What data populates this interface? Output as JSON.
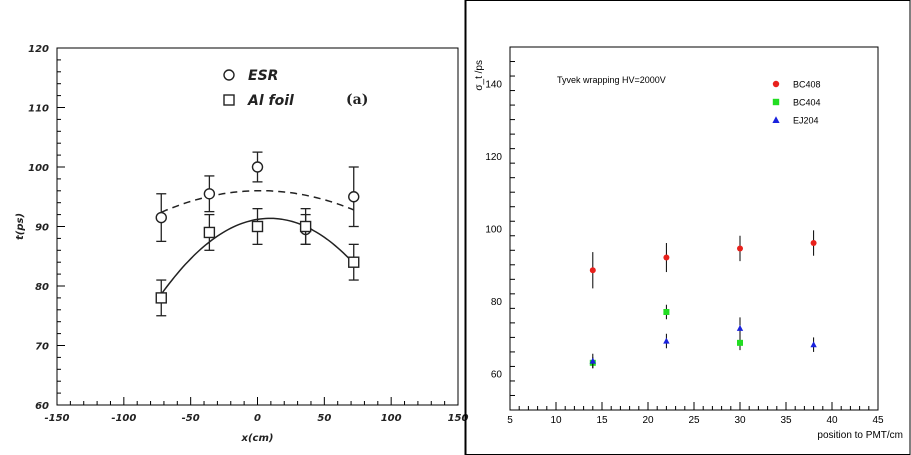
{
  "chart_data": [
    {
      "type": "scatter",
      "title": "",
      "annotation": "(a)",
      "xlabel": "x(cm)",
      "ylabel": "t(ps)",
      "xlim": [
        -150,
        150
      ],
      "ylim": [
        60,
        120
      ],
      "xticks": [
        "-150",
        "-100",
        "-50",
        "0",
        "50",
        "100",
        "150"
      ],
      "yticks": [
        "60",
        "70",
        "80",
        "90",
        "100",
        "110",
        "120"
      ],
      "legend_position": "top-center",
      "series": [
        {
          "name": "ESR",
          "marker": "circle",
          "x": [
            -72,
            -36,
            0,
            36,
            72
          ],
          "y": [
            91.5,
            95.5,
            100,
            89.5,
            95
          ],
          "err": [
            4,
            3,
            2.5,
            2.5,
            5
          ],
          "fit": "dashed"
        },
        {
          "name": "Al foil",
          "marker": "square",
          "x": [
            -72,
            -36,
            0,
            36,
            72
          ],
          "y": [
            78,
            89,
            90,
            90,
            84
          ],
          "err": [
            3,
            3,
            3,
            3,
            3
          ],
          "fit": "solid"
        }
      ]
    },
    {
      "type": "scatter",
      "title": "",
      "annotation": "Tyvek wrapping  HV=2000V",
      "xlabel": "position to PMT/cm",
      "ylabel": "σ_t /ps",
      "xlim": [
        5,
        45
      ],
      "ylim": [
        50,
        150
      ],
      "xticks": [
        "5",
        "10",
        "15",
        "20",
        "25",
        "30",
        "35",
        "40",
        "45"
      ],
      "yticks": [
        "60",
        "80",
        "100",
        "120",
        "140"
      ],
      "legend_position": "top-right",
      "series": [
        {
          "name": "BC408",
          "color": "#e8211c",
          "marker": "circle",
          "x": [
            14,
            22,
            30,
            38
          ],
          "y": [
            88.5,
            92,
            94.5,
            96
          ],
          "err": [
            5,
            4,
            3.5,
            3.5
          ]
        },
        {
          "name": "BC404",
          "color": "#22dd22",
          "marker": "square",
          "x": [
            14,
            22,
            30
          ],
          "y": [
            63,
            77,
            68.5
          ],
          "err": [
            1.5,
            2,
            2
          ]
        },
        {
          "name": "EJ204",
          "color": "#1a22dd",
          "marker": "triangle",
          "x": [
            14,
            22,
            30,
            38
          ],
          "y": [
            63.5,
            69,
            72.5,
            68
          ],
          "err": [
            2,
            2,
            3,
            2
          ]
        }
      ]
    }
  ]
}
